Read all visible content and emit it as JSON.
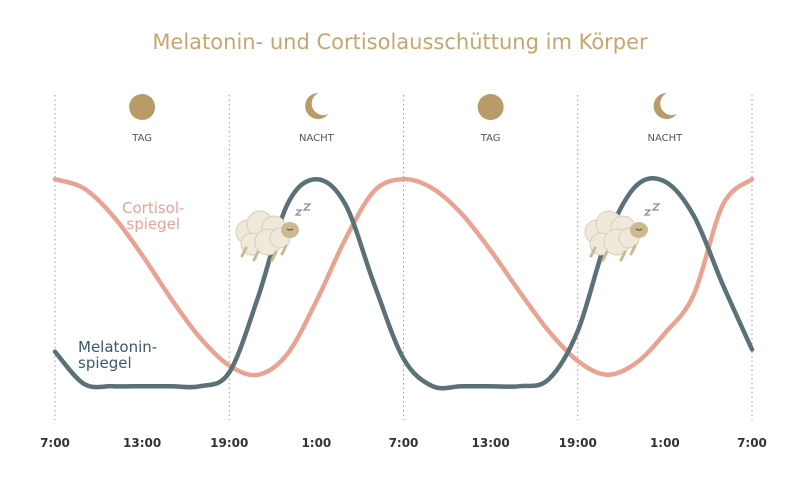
{
  "chart_data": {
    "type": "line",
    "title": "Melatonin- und Cortisolausschüttung im Körper",
    "x": [
      0,
      2,
      4,
      6,
      8,
      10,
      12,
      14,
      16,
      18,
      20,
      22,
      24,
      26,
      28,
      30,
      32,
      34,
      36,
      38,
      40,
      42,
      44,
      46,
      48
    ],
    "xlim": [
      0,
      48
    ],
    "xticks": [
      {
        "value": 0,
        "label": "7:00"
      },
      {
        "value": 6,
        "label": "13:00"
      },
      {
        "value": 12,
        "label": "19:00"
      },
      {
        "value": 18,
        "label": "1:00"
      },
      {
        "value": 24,
        "label": "7:00"
      },
      {
        "value": 30,
        "label": "13:00"
      },
      {
        "value": 36,
        "label": "19:00"
      },
      {
        "value": 42,
        "label": "1:00"
      },
      {
        "value": 48,
        "label": "7:00"
      }
    ],
    "ylim": [
      0,
      100
    ],
    "periods": [
      {
        "label": "TAG",
        "icon": "sun"
      },
      {
        "label": "NACHT",
        "icon": "moon"
      },
      {
        "label": "TAG",
        "icon": "sun"
      },
      {
        "label": "NACHT",
        "icon": "moon"
      }
    ],
    "series": [
      {
        "name": "Cortisol-\nspiegel",
        "color": "#e9a392",
        "label_color": "#e9a392",
        "values": [
          96,
          92,
          80,
          63,
          44,
          27,
          15,
          11,
          20,
          43,
          70,
          91,
          96,
          92,
          81,
          65,
          47,
          30,
          17,
          11,
          16,
          29,
          46,
          85,
          96
        ]
      },
      {
        "name": "Melatonin-\nspiegel",
        "color": "#5b7176",
        "label_color": "#3e5866",
        "values": [
          21,
          7,
          6,
          6,
          6,
          6,
          12,
          45,
          85,
          96,
          85,
          50,
          18,
          6,
          6,
          6,
          6,
          9,
          30,
          70,
          93,
          95,
          80,
          50,
          22
        ]
      }
    ]
  }
}
